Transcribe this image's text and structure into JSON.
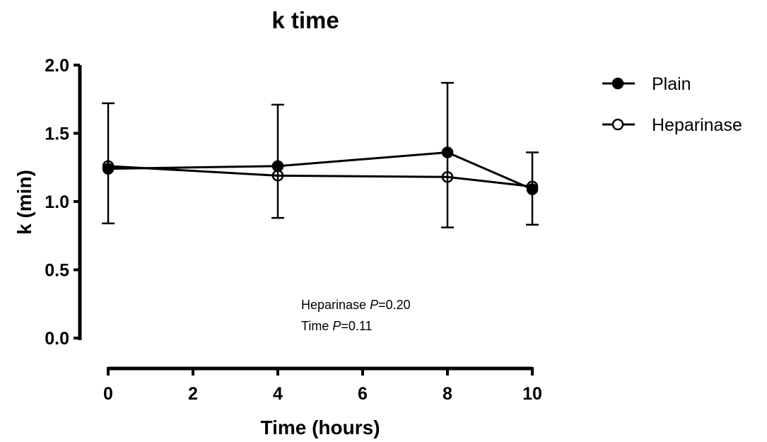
{
  "chart_data": {
    "type": "line",
    "title": "k time",
    "xlabel": "Time (hours)",
    "ylabel": "k (min)",
    "xlim": [
      0,
      10
    ],
    "ylim": [
      0,
      2.0
    ],
    "xticks": [
      "0",
      "2",
      "4",
      "6",
      "8",
      "10"
    ],
    "yticks": [
      "0.0",
      "0.5",
      "1.0",
      "1.5",
      "2.0"
    ],
    "grid": false,
    "legend_position": "top-right",
    "series": [
      {
        "name": "Plain",
        "marker": "filled-circle",
        "color": "#000000",
        "x": [
          0,
          4,
          8,
          10
        ],
        "y": [
          1.24,
          1.26,
          1.36,
          1.09
        ],
        "error_upper": [
          1.72,
          1.71,
          1.87,
          1.36
        ],
        "error_lower": [
          0.84,
          0.88,
          0.81,
          0.83
        ]
      },
      {
        "name": "Heparinase",
        "marker": "open-circle",
        "color": "#000000",
        "x": [
          0,
          4,
          8,
          10
        ],
        "y": [
          1.26,
          1.19,
          1.18,
          1.11
        ],
        "error_upper": [],
        "error_lower": []
      }
    ],
    "annotations": [
      {
        "prefix": "Heparinase ",
        "italic": "P",
        "suffix": "=0.20"
      },
      {
        "prefix": "Time ",
        "italic": "P",
        "suffix": "=0.11"
      }
    ]
  }
}
